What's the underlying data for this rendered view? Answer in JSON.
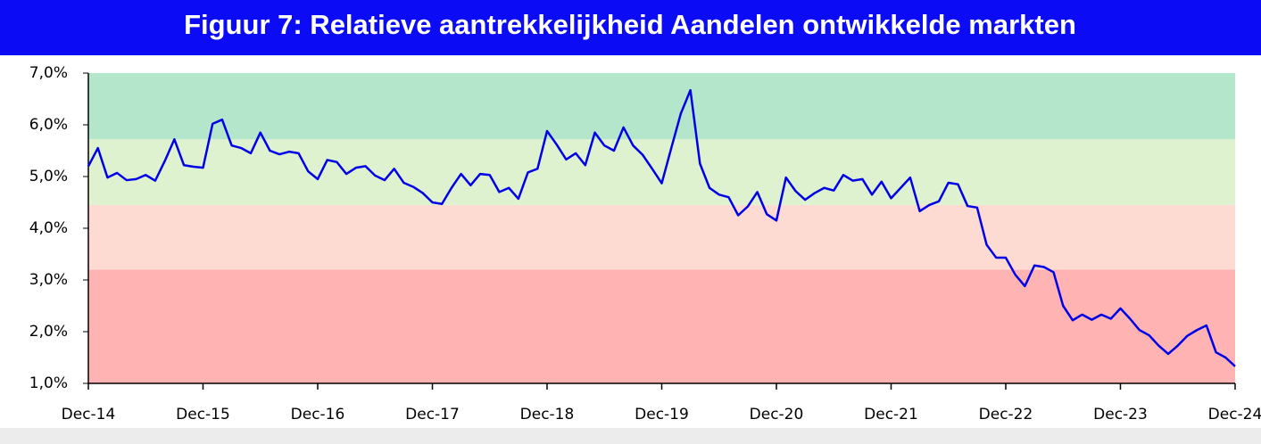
{
  "chart_data": {
    "type": "line",
    "title": "Figuur 7: Relatieve aantrekkelijkheid Aandelen ontwikkelde markten",
    "categories": [
      "Dec-14",
      null,
      null,
      null,
      null,
      null,
      null,
      null,
      null,
      null,
      null,
      null,
      "Dec-15",
      null,
      null,
      null,
      null,
      null,
      null,
      null,
      null,
      null,
      null,
      null,
      "Dec-16",
      null,
      null,
      null,
      null,
      null,
      null,
      null,
      null,
      null,
      null,
      null,
      "Dec-17",
      null,
      null,
      null,
      null,
      null,
      null,
      null,
      null,
      null,
      null,
      null,
      "Dec-18",
      null,
      null,
      null,
      null,
      null,
      null,
      null,
      null,
      null,
      null,
      null,
      "Dec-19",
      null,
      null,
      null,
      null,
      null,
      null,
      null,
      null,
      null,
      null,
      null,
      "Dec-20",
      null,
      null,
      null,
      null,
      null,
      null,
      null,
      null,
      null,
      null,
      null,
      "Dec-21",
      null,
      null,
      null,
      null,
      null,
      null,
      null,
      null,
      null,
      null,
      null,
      "Dec-22",
      null,
      null,
      null,
      null,
      null,
      null,
      null,
      null,
      null,
      null,
      null,
      "Dec-23",
      null,
      null,
      null,
      null,
      null,
      null,
      null,
      null,
      null,
      null,
      null,
      "Dec-24"
    ],
    "series": [
      {
        "color": "#0000e6",
        "values": [
          5.2,
          5.55,
          4.98,
          5.07,
          4.93,
          4.95,
          5.03,
          4.92,
          5.3,
          5.72,
          5.22,
          5.19,
          5.17,
          6.02,
          6.1,
          5.6,
          5.55,
          5.45,
          5.85,
          5.5,
          5.43,
          5.48,
          5.45,
          5.1,
          4.95,
          5.32,
          5.28,
          5.05,
          5.17,
          5.2,
          5.02,
          4.93,
          5.15,
          4.88,
          4.8,
          4.68,
          4.5,
          4.47,
          4.78,
          5.05,
          4.83,
          5.05,
          5.03,
          4.7,
          4.78,
          4.57,
          5.08,
          5.15,
          5.88,
          5.62,
          5.33,
          5.45,
          5.22,
          5.85,
          5.6,
          5.5,
          5.95,
          5.6,
          5.42,
          5.15,
          4.87,
          5.55,
          6.22,
          6.67,
          5.25,
          4.78,
          4.65,
          4.6,
          4.25,
          4.42,
          4.7,
          4.27,
          4.15,
          4.98,
          4.72,
          4.55,
          4.68,
          4.78,
          4.73,
          5.03,
          4.92,
          4.95,
          4.65,
          4.9,
          4.58,
          4.78,
          4.98,
          4.33,
          4.45,
          4.52,
          4.88,
          4.85,
          4.43,
          4.4,
          3.68,
          3.43,
          3.43,
          3.1,
          2.88,
          3.28,
          3.25,
          3.15,
          2.5,
          2.22,
          2.33,
          2.23,
          2.33,
          2.25,
          2.45,
          2.25,
          2.03,
          1.93,
          1.73,
          1.57,
          1.73,
          1.92,
          2.03,
          2.12,
          1.6,
          1.5,
          1.33
        ]
      }
    ],
    "bands": [
      {
        "from": 1,
        "to": 3.2,
        "color": "#ffb3b3"
      },
      {
        "from": 3.2,
        "to": 4.45,
        "color": "#fddbd2"
      },
      {
        "from": 4.45,
        "to": 5.72,
        "color": "#dff2cf"
      },
      {
        "from": 5.72,
        "to": 7,
        "color": "#b4e6cc"
      }
    ],
    "ylim": [
      1,
      7
    ],
    "yticks": [
      {
        "value": 1,
        "label": "1,0%"
      },
      {
        "value": 2,
        "label": "2,0%"
      },
      {
        "value": 3,
        "label": "3,0%"
      },
      {
        "value": 4,
        "label": "4,0%"
      },
      {
        "value": 5,
        "label": "5,0%"
      },
      {
        "value": 6,
        "label": "6,0%"
      },
      {
        "value": 7,
        "label": "7,0%"
      }
    ]
  }
}
